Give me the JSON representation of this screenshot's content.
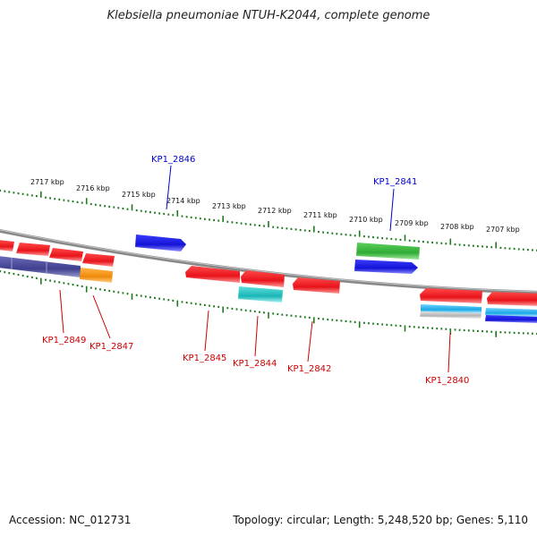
{
  "title": "Klebsiella pneumoniae NTUH-K2044, complete genome",
  "footer": {
    "accession": "Accession: NC_012731",
    "summary": "Topology: circular; Length: 5,248,520 bp; Genes: 5,110"
  },
  "colors": {
    "red": "#e8141a",
    "blue": "#1a1ae6",
    "green": "#36b83a",
    "cyan": "#21c7c7",
    "orange": "#f3930f",
    "purple": "#4a4a9a",
    "gray": "#bfbfbf",
    "backbone": "#8c8c8c",
    "tick": "#1f7a1f",
    "label_red": "#cc0000",
    "label_blue": "#0000cc"
  },
  "scale_labels": [
    "2717 kbp",
    "2716 kbp",
    "2715 kbp",
    "2714 kbp",
    "2713 kbp",
    "2712 kbp",
    "2711 kbp",
    "2710 kbp",
    "2709 kbp",
    "2708 kbp",
    "2707 kbp"
  ],
  "gene_labels": {
    "kp1_2846": "KP1_2846",
    "kp1_2841": "KP1_2841",
    "kp1_2849": "KP1_2849",
    "kp1_2847": "KP1_2847",
    "kp1_2845": "KP1_2845",
    "kp1_2844": "KP1_2844",
    "kp1_2842": "KP1_2842",
    "kp1_2840": "KP1_2840"
  }
}
